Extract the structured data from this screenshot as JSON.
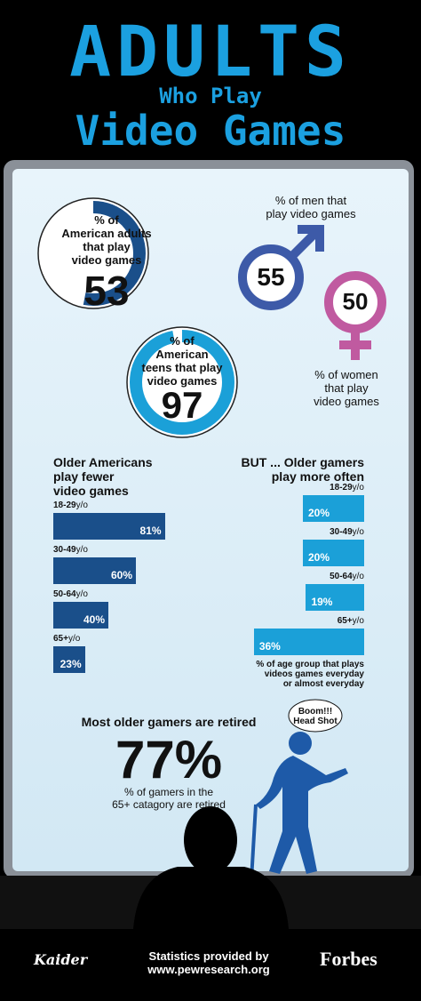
{
  "header": {
    "title": "ADULTS",
    "subtitle": "Who Play",
    "title2": "Video Games"
  },
  "adults": {
    "label": "% of\nAmerican adults\nthat play\nvideo games",
    "value": 53
  },
  "teens": {
    "label": "% of\nAmerican\nteens that play\nvideo games",
    "value": 97
  },
  "men": {
    "label": "% of men that\nplay video games",
    "value": 55
  },
  "women": {
    "label": "% of women\nthat play\nvideo games",
    "value": 50
  },
  "older_fewer": {
    "title": "Older Americans\nplay fewer\nvideo games",
    "groups": [
      {
        "age": "18-29",
        "unit": "y/o",
        "value": 81,
        "value_label": "81%"
      },
      {
        "age": "30-49",
        "unit": "y/o",
        "value": 60,
        "value_label": "60%"
      },
      {
        "age": "50-64",
        "unit": "y/o",
        "value": 40,
        "value_label": "40%"
      },
      {
        "age": "65+",
        "unit": "y/o",
        "value": 23,
        "value_label": "23%"
      }
    ]
  },
  "older_often": {
    "title": "BUT ... Older gamers\nplay more often",
    "groups": [
      {
        "age": "18-29",
        "unit": "y/o",
        "value": 20,
        "value_label": "20%"
      },
      {
        "age": "30-49",
        "unit": "y/o",
        "value": 20,
        "value_label": "20%"
      },
      {
        "age": "50-64",
        "unit": "y/o",
        "value": 19,
        "value_label": "19%"
      },
      {
        "age": "65+",
        "unit": "y/o",
        "value": 36,
        "value_label": "36%"
      }
    ],
    "note": "% of age group that plays\nvideos games everyday\nor almost everyday"
  },
  "retired": {
    "title": "Most older gamers are retired",
    "value_label": "77%",
    "label": "% of gamers in the\n65+ catagory are retired",
    "bubble": "Boom!!!\nHead Shot"
  },
  "footer": {
    "logo": "Kaider",
    "credit": "Statistics provided by\nwww.pewresearch.org",
    "brand": "Forbes"
  }
}
